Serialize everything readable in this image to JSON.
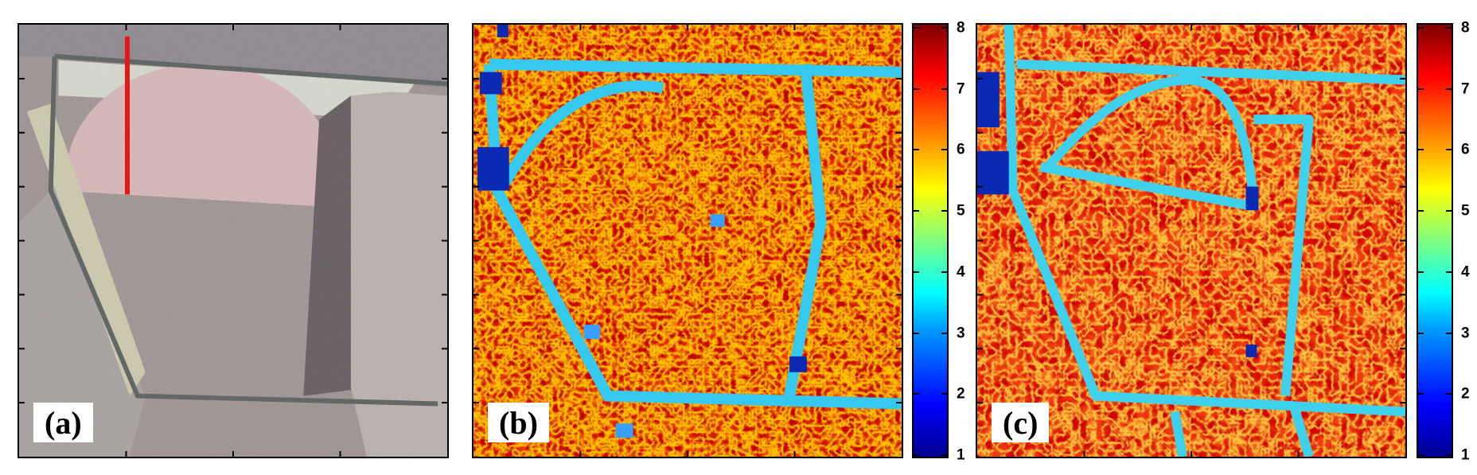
{
  "panels": [
    {
      "id": "a",
      "label": "(a)"
    },
    {
      "id": "b",
      "label": "(b)"
    },
    {
      "id": "c",
      "label": "(c)"
    }
  ],
  "colorbars": [
    {
      "panel": "b",
      "ticks": [
        "1",
        "2",
        "3",
        "4",
        "5",
        "6",
        "7",
        "8"
      ]
    },
    {
      "panel": "c",
      "ticks": [
        "1",
        "2",
        "3",
        "4",
        "5",
        "6",
        "7",
        "8"
      ]
    }
  ],
  "colormap": "jet",
  "colors": {
    "marker_line": "#e8151c",
    "frame": "#000000"
  }
}
